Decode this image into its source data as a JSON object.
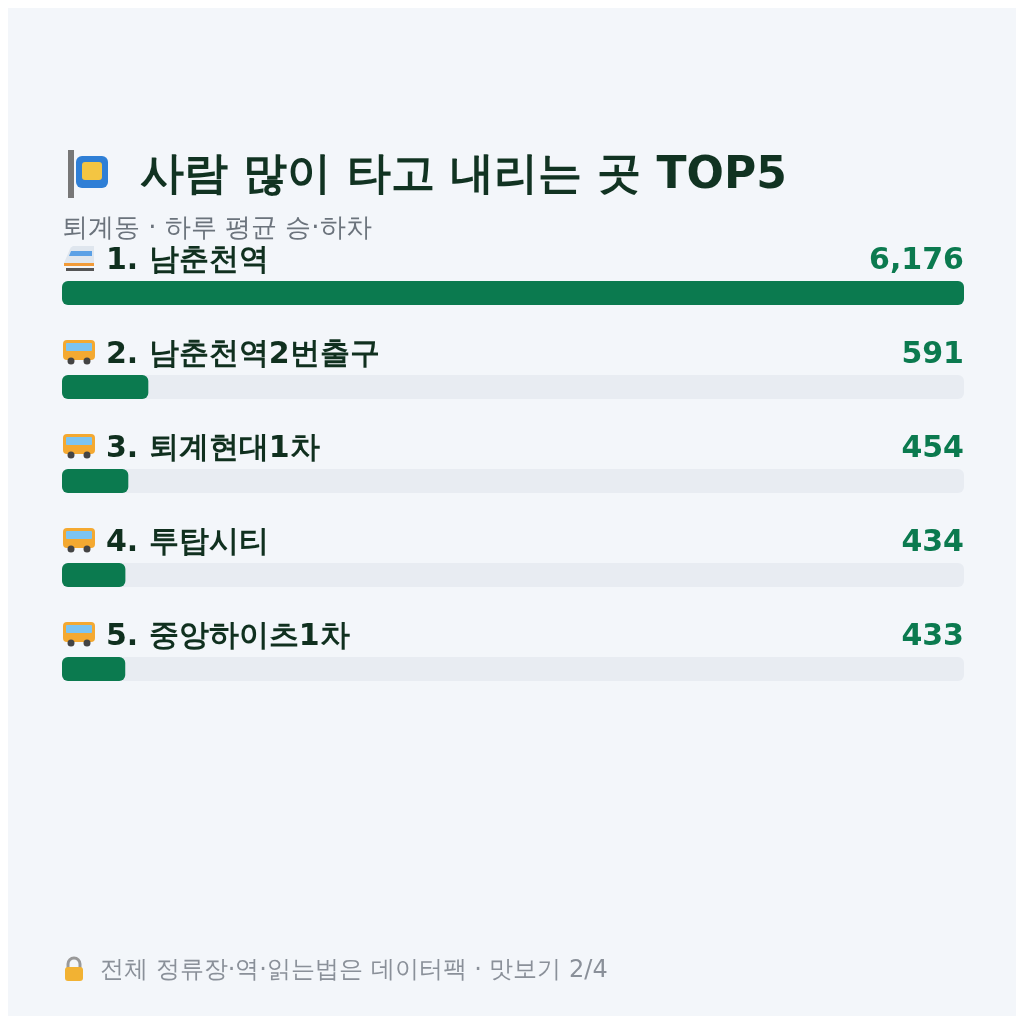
{
  "chart_data": {
    "type": "bar",
    "orientation": "horizontal",
    "title": "사람 많이 타고 내리는 곳 TOP5",
    "subtitle": "퇴계동 · 하루 평균 승·하차",
    "categories": [
      "1. 남춘천역",
      "2. 남춘천역2번출구",
      "3. 퇴계현대1차",
      "4. 투탑시티",
      "5. 중앙하이츠1차"
    ],
    "values": [
      6176,
      591,
      454,
      434,
      433
    ],
    "value_labels": [
      "6,176",
      "591",
      "454",
      "434",
      "433"
    ],
    "color": "#0b7a4f",
    "annotations": [
      "전체 정류장·역·읽는법은 데이터팩 · 맛보기 2/4"
    ]
  }
}
